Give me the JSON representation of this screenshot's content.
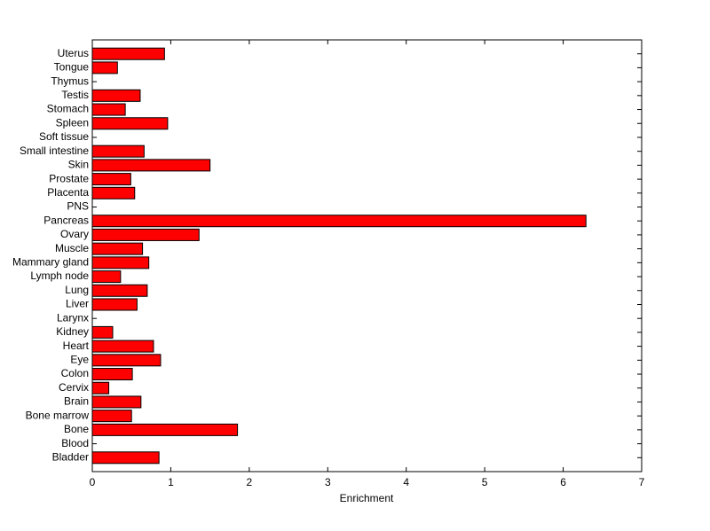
{
  "chart_data": {
    "type": "bar",
    "orientation": "horizontal",
    "xlabel": "Enrichment",
    "categories": [
      "Bladder",
      "Blood",
      "Bone",
      "Bone marrow",
      "Brain",
      "Cervix",
      "Colon",
      "Eye",
      "Heart",
      "Kidney",
      "Larynx",
      "Liver",
      "Lung",
      "Lymph node",
      "Mammary gland",
      "Muscle",
      "Ovary",
      "Pancreas",
      "PNS",
      "Placenta",
      "Prostate",
      "Skin",
      "Small intestine",
      "Soft tissue",
      "Spleen",
      "Stomach",
      "Testis",
      "Thymus",
      "Tongue",
      "Uterus"
    ],
    "values": [
      0.85,
      0,
      1.85,
      0.5,
      0.62,
      0.21,
      0.51,
      0.87,
      0.78,
      0.26,
      0,
      0.57,
      0.7,
      0.36,
      0.72,
      0.64,
      1.36,
      6.29,
      0,
      0.54,
      0.49,
      1.5,
      0.66,
      0,
      0.96,
      0.42,
      0.61,
      0,
      0.32,
      0.92
    ],
    "color": "#ff0000",
    "xlim": [
      0,
      7
    ],
    "xticks": [
      0,
      1,
      2,
      3,
      4,
      5,
      6,
      7
    ]
  }
}
